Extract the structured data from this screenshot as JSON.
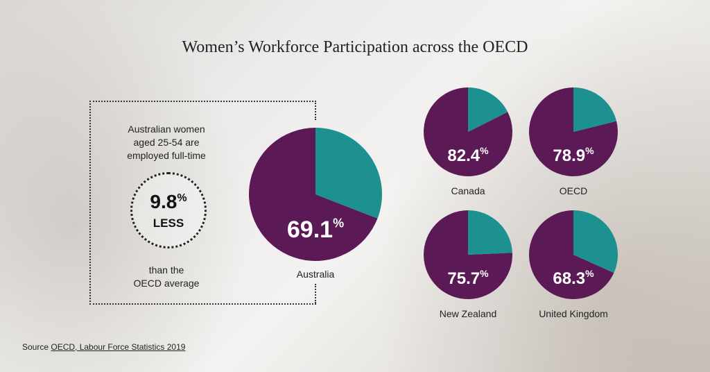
{
  "title": "Women’s Workforce Participation across the OECD",
  "callout": {
    "intro_line1": "Australian women",
    "intro_line2": "aged 25-54 are",
    "intro_line3": "employed full-time",
    "value": "9.8",
    "value_unit": "%",
    "value_sub": "LESS",
    "outro_line1": "than the",
    "outro_line2": "OECD average"
  },
  "colors": {
    "purple": "#5b1a55",
    "purple_light": "#6e2468",
    "teal": "#1d918f",
    "teal_dark": "#167a78"
  },
  "chart_data": {
    "type": "pie",
    "title": "Women’s Workforce Participation across the OECD",
    "unit": "%",
    "items": [
      {
        "label": "Australia",
        "value": 69.1,
        "value_text": "69.1",
        "featured": true
      },
      {
        "label": "Canada",
        "value": 82.4,
        "value_text": "82.4"
      },
      {
        "label": "OECD",
        "value": 78.9,
        "value_text": "78.9"
      },
      {
        "label": "New Zealand",
        "value": 75.7,
        "value_text": "75.7"
      },
      {
        "label": "United Kingdom",
        "value": 68.3,
        "value_text": "68.3"
      }
    ]
  },
  "source": {
    "prefix": "Source ",
    "link_text": "OECD, Labour Force Statistics 2019"
  }
}
